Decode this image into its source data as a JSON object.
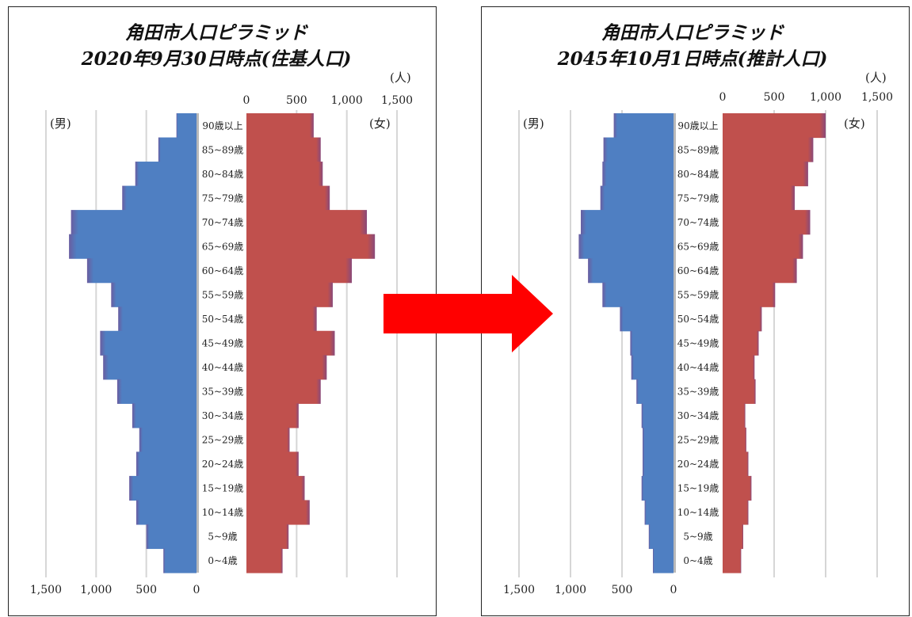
{
  "chart_data": [
    {
      "type": "population-pyramid",
      "title": [
        "角田市人口ピラミッド",
        "2020年9月30日時点(住基人口)"
      ],
      "unit": "(人)",
      "male_label": "(男)",
      "female_label": "(女)",
      "ticks": [
        0,
        500,
        1000,
        1500
      ],
      "tick_labels": [
        "0",
        "500",
        "1,000",
        "1,500"
      ],
      "xlim": [
        0,
        1500
      ],
      "categories": [
        "0~4歳",
        "5~9歳",
        "10~14歳",
        "15~19歳",
        "20~24歳",
        "25~29歳",
        "30~34歳",
        "35~39歳",
        "40~44歳",
        "45~49歳",
        "50~54歳",
        "55~59歳",
        "60~64歳",
        "65~69歳",
        "70~74歳",
        "75~79歳",
        "80~84歳",
        "85~89歳",
        "90歳以上"
      ],
      "series": [
        {
          "name": "男",
          "values": [
            330,
            500,
            600,
            670,
            600,
            570,
            640,
            790,
            930,
            960,
            780,
            850,
            1090,
            1270,
            1250,
            740,
            610,
            380,
            200
          ]
        },
        {
          "name": "女",
          "values": [
            360,
            420,
            630,
            580,
            520,
            430,
            520,
            740,
            800,
            880,
            700,
            860,
            1050,
            1280,
            1200,
            830,
            760,
            740,
            670
          ]
        }
      ]
    },
    {
      "type": "population-pyramid",
      "title": [
        "角田市人口ピラミッド",
        "2045年10月1日時点(推計人口)"
      ],
      "unit": "(人)",
      "male_label": "(男)",
      "female_label": "(女)",
      "ticks": [
        0,
        500,
        1000,
        1500
      ],
      "tick_labels": [
        "0",
        "500",
        "1,000",
        "1,500"
      ],
      "xlim": [
        0,
        1500
      ],
      "categories": [
        "0~4歳",
        "5~9歳",
        "10~14歳",
        "15~19歳",
        "20~24歳",
        "25~29歳",
        "30~34歳",
        "35~39歳",
        "40~44歳",
        "45~49歳",
        "50~54歳",
        "55~59歳",
        "60~64歳",
        "65~69歳",
        "70~74歳",
        "75~79歳",
        "80~84歳",
        "85~89歳",
        "90歳以上"
      ],
      "series": [
        {
          "name": "男",
          "values": [
            200,
            240,
            280,
            310,
            300,
            300,
            310,
            360,
            410,
            420,
            520,
            690,
            830,
            920,
            900,
            710,
            690,
            680,
            580
          ]
        },
        {
          "name": "女",
          "values": [
            180,
            200,
            250,
            280,
            250,
            230,
            220,
            320,
            310,
            350,
            380,
            510,
            720,
            780,
            850,
            700,
            830,
            880,
            1000
          ]
        }
      ]
    }
  ],
  "colors": {
    "male": "#4f7fc2",
    "male_edge": "#6a5da0",
    "female": "#c0504d",
    "female_edge": "#8a4a7a",
    "arrow": "#ff0000"
  },
  "icons": {
    "arrow": "right-arrow-icon"
  }
}
